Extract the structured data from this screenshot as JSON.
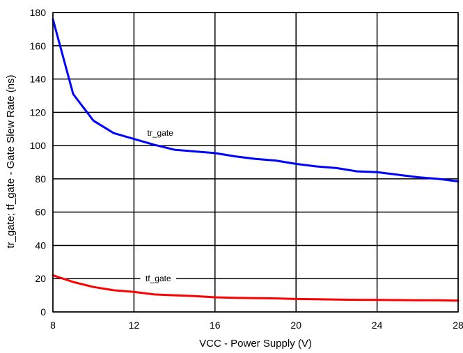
{
  "chart_data": {
    "type": "line",
    "xlabel": "VCC - Power Supply (V)",
    "ylabel": "tr_gate; tf_gate - Gate Slew Rate (ns)",
    "xlim": [
      8,
      28
    ],
    "ylim": [
      0,
      180
    ],
    "x_ticks": [
      "8",
      "12",
      "16",
      "20",
      "24",
      "28"
    ],
    "y_ticks": [
      "0",
      "20",
      "40",
      "60",
      "80",
      "100",
      "120",
      "140",
      "160",
      "180"
    ],
    "x_tick_values": [
      8,
      12,
      16,
      20,
      24,
      28
    ],
    "y_tick_values": [
      0,
      20,
      40,
      60,
      80,
      100,
      120,
      140,
      160,
      180
    ],
    "grid": true,
    "series": [
      {
        "name": "tr_gate",
        "color": "#0000ff",
        "x": [
          8,
          9,
          10,
          11,
          12,
          13,
          14,
          15,
          16,
          17,
          18,
          19,
          20,
          21,
          22,
          23,
          24,
          25,
          26,
          27,
          28
        ],
        "y": [
          176,
          131,
          115,
          107.5,
          104,
          100.5,
          97.5,
          96.5,
          95.5,
          93.5,
          92,
          91,
          89,
          87.5,
          86.5,
          84.5,
          84,
          82.5,
          81,
          80,
          78.5
        ],
        "label_at": [
          13.3,
          106
        ]
      },
      {
        "name": "tf_gate",
        "color": "#ff0000",
        "x": [
          8,
          9,
          10,
          11,
          12,
          13,
          14,
          15,
          16,
          17,
          18,
          19,
          20,
          21,
          22,
          23,
          24,
          25,
          26,
          27,
          28
        ],
        "y": [
          22,
          18,
          15,
          13,
          12,
          10.5,
          10,
          9.5,
          8.8,
          8.5,
          8.3,
          8.1,
          7.8,
          7.6,
          7.4,
          7.3,
          7.2,
          7.1,
          7,
          7,
          6.8
        ],
        "label_at": [
          13.2,
          18.5
        ]
      }
    ]
  }
}
